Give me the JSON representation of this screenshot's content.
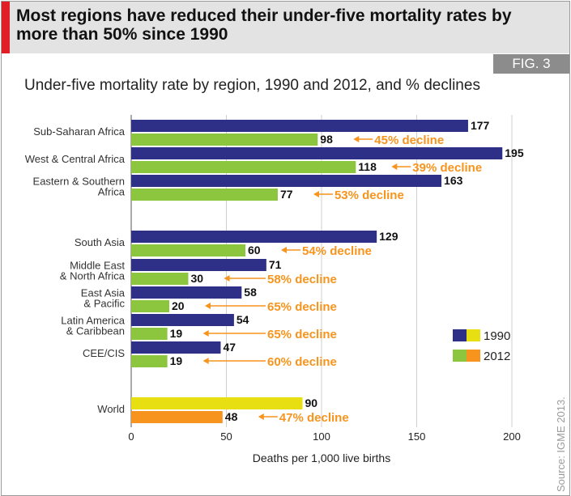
{
  "headline": "Most regions have reduced their under-five mortality rates by more than 50% since 1990",
  "figure_label": "FIG. 3",
  "source": "Source: IGME 2013.",
  "colors": {
    "bar_1990": "#2e2f86",
    "bar_2012": "#8cc63f",
    "world_1990": "#e8df12",
    "world_2012": "#f7941d",
    "decline_text": "#f7941d",
    "accent": "#e11d26"
  },
  "chart_data": {
    "type": "bar",
    "orientation": "horizontal",
    "title": "Under-five mortality rate by region, 1990 and 2012, and % declines",
    "xlabel": "Deaths per 1,000 live births",
    "xlim": [
      0,
      200
    ],
    "xticks": [
      0,
      50,
      100,
      150,
      200
    ],
    "grid": true,
    "legend_position": "right",
    "categories": [
      "Sub-Saharan Africa",
      "West & Central Africa",
      "Eastern & Southern Africa",
      "South Asia",
      "Middle East & North Africa",
      "East Asia & Pacific",
      "Latin America & Caribbean",
      "CEE/CIS",
      "World"
    ],
    "category_labels": [
      [
        "Sub-Saharan Africa"
      ],
      [
        "West & Central Africa"
      ],
      [
        "Eastern & Southern",
        "Africa"
      ],
      [
        "South Asia"
      ],
      [
        "Middle East",
        "& North Africa"
      ],
      [
        "East Asia",
        "& Pacific"
      ],
      [
        "Latin America",
        "& Caribbean"
      ],
      [
        "CEE/CIS"
      ],
      [
        "World"
      ]
    ],
    "series": [
      {
        "name": "1990",
        "values": [
          177,
          195,
          163,
          129,
          71,
          58,
          54,
          47,
          90
        ]
      },
      {
        "name": "2012",
        "values": [
          98,
          118,
          77,
          60,
          30,
          20,
          19,
          19,
          48
        ]
      }
    ],
    "declines": [
      "45% decline",
      "39% decline",
      "53% decline",
      "54% decline",
      "58% decline",
      "65% decline",
      "65% decline",
      "60% decline",
      "47% decline"
    ]
  }
}
